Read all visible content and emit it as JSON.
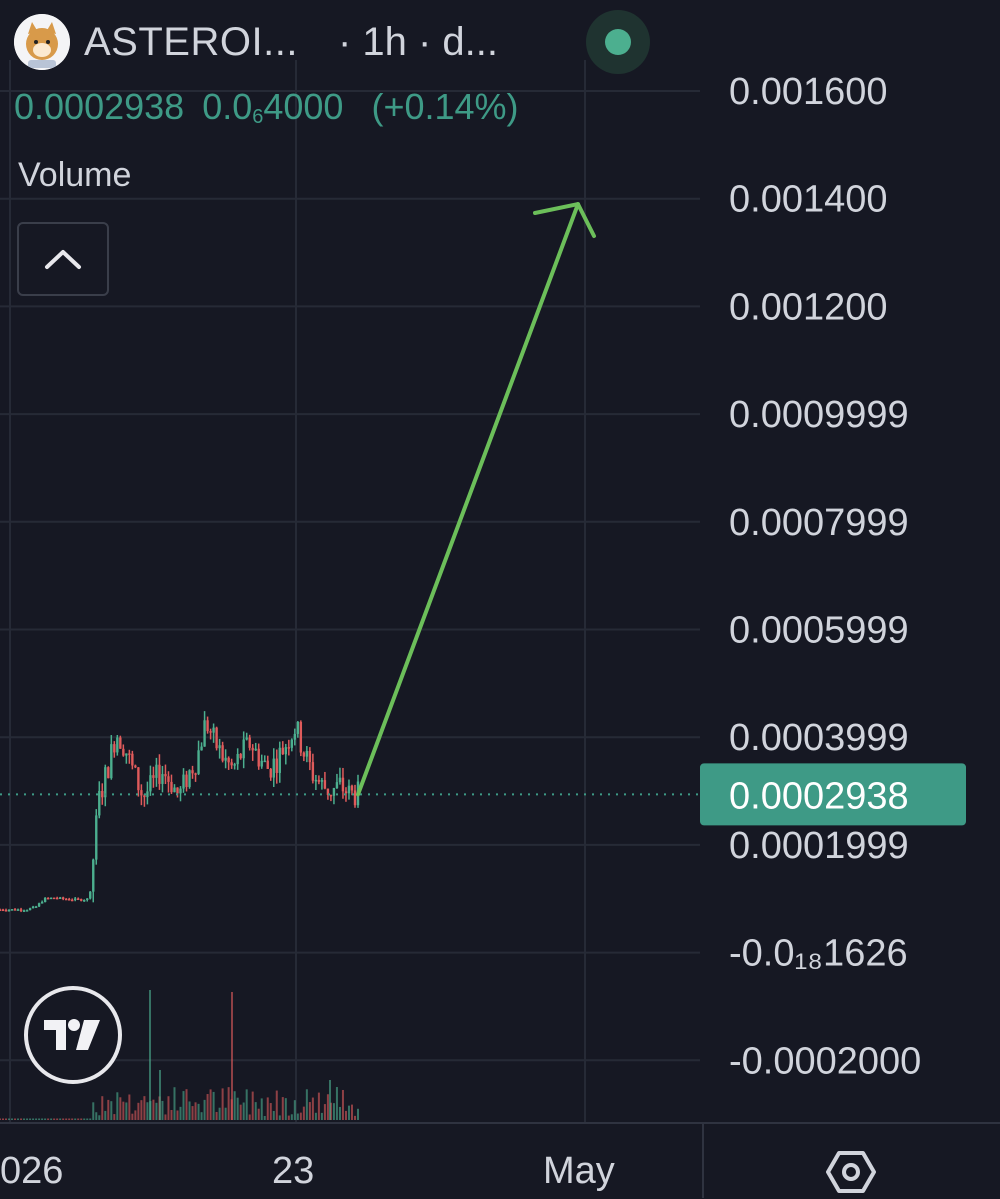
{
  "header": {
    "symbol": "ASTEROI...",
    "interval": "· 1h · d...",
    "last_price": "0.0002938",
    "change_value_prefix": "0.0",
    "change_value_sub": "6",
    "change_value_suffix": "4000",
    "change_percent": "(+0.14%)"
  },
  "volume_label": "Volume",
  "icons": {
    "avatar": "shiba-astronaut-avatar",
    "status": "market-status-dot",
    "collapse": "chevron-up-icon",
    "logo": "tradingview-logo-icon",
    "settings": "hexagon-settings-icon"
  },
  "colors": {
    "background": "#161823",
    "up": "#4caf8f",
    "down": "#e05b5b",
    "arrow": "#6cbf5a",
    "price_tag": "#3e9a86"
  },
  "chart_data": {
    "type": "candlestick",
    "y_tick_labels": [
      "0.001600",
      "0.001400",
      "0.001200",
      "0.0009999",
      "0.0007999",
      "0.0005999",
      "0.0003999",
      "0.0001999",
      "-0.0₁₈1626",
      "-0.0002000"
    ],
    "x_tick_labels": [
      "026",
      "23",
      "May"
    ],
    "current_price": "0.0002938",
    "ylim": [
      -0.00024,
      0.00168
    ],
    "price_levels": [
      8e-05,
      8e-05,
      8e-05,
      8e-05,
      8.5e-05,
      0.0001,
      0.000102,
      0.0001,
      9.9e-05,
      9.8e-05,
      0.0001,
      0.00028,
      0.00034,
      0.00041,
      0.00038,
      0.00033,
      0.00029,
      0.00031,
      0.00034,
      0.00032,
      0.00029,
      0.00033,
      0.00036,
      0.00043,
      0.00039,
      0.00036,
      0.00034,
      0.00037,
      0.00039,
      0.00036,
      0.00034,
      0.00036,
      0.00039,
      0.00042,
      0.00037,
      0.00033,
      0.00031,
      0.0003,
      0.00031,
      0.000295,
      0.0002938
    ],
    "projection": {
      "from_price": 0.0002938,
      "to_price": 0.00139,
      "target_label": "May"
    },
    "grid": true
  }
}
